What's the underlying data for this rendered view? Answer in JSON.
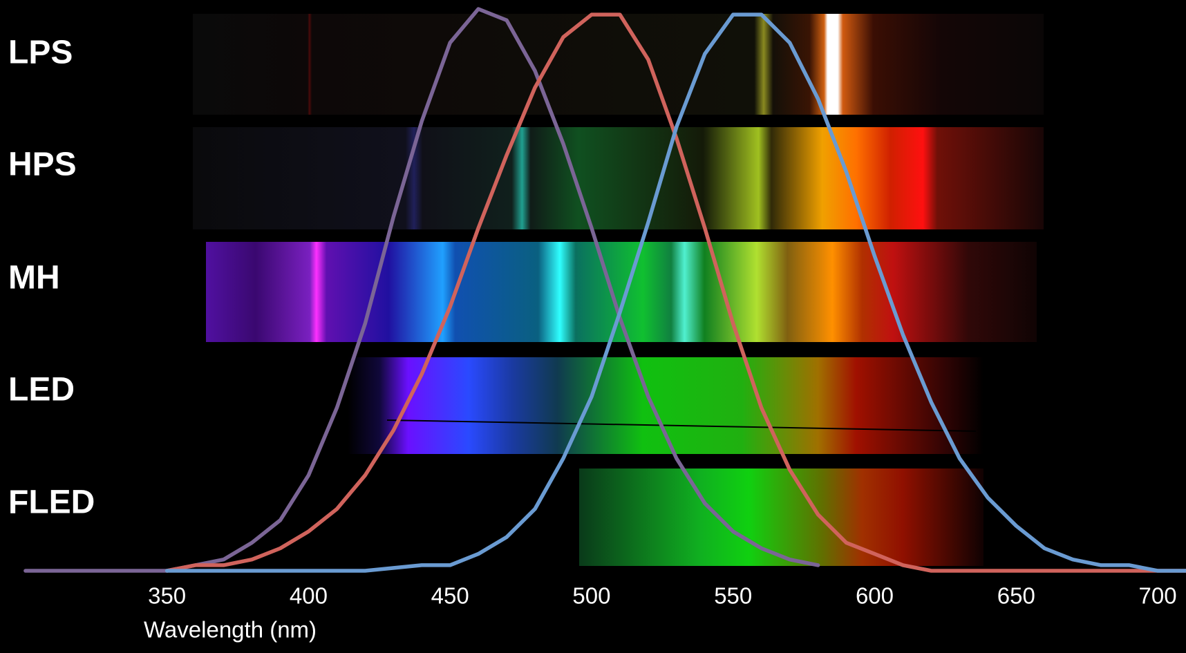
{
  "chart_data": {
    "type": "line",
    "row_labels": [
      "LPS",
      "HPS",
      "MH",
      "LED",
      "FLED"
    ],
    "x_label": "Wavelength (nm)",
    "xlim": [
      291,
      710
    ],
    "xticks": [
      350,
      400,
      450,
      500,
      550,
      600,
      650,
      700
    ],
    "ylim": [
      0,
      1
    ],
    "series": [
      {
        "color": "#7b6596",
        "x": [
          300,
          350,
          360,
          370,
          380,
          390,
          400,
          410,
          420,
          430,
          440,
          450,
          460,
          470,
          480,
          490,
          500,
          510,
          520,
          530,
          540,
          550,
          560,
          570,
          580
        ],
        "values": [
          0.0,
          0.0,
          0.01,
          0.02,
          0.05,
          0.09,
          0.17,
          0.29,
          0.44,
          0.63,
          0.8,
          0.94,
          1.0,
          0.98,
          0.89,
          0.76,
          0.61,
          0.45,
          0.31,
          0.2,
          0.12,
          0.07,
          0.04,
          0.02,
          0.01
        ]
      },
      {
        "color": "#d0635c",
        "x": [
          350,
          360,
          370,
          380,
          390,
          400,
          410,
          420,
          430,
          440,
          450,
          460,
          470,
          480,
          490,
          500,
          510,
          520,
          530,
          540,
          550,
          560,
          570,
          580,
          590,
          600,
          610,
          620,
          650,
          680,
          710
        ],
        "values": [
          0.0,
          0.01,
          0.01,
          0.02,
          0.04,
          0.07,
          0.11,
          0.17,
          0.25,
          0.35,
          0.47,
          0.61,
          0.74,
          0.86,
          0.95,
          0.99,
          0.99,
          0.91,
          0.77,
          0.61,
          0.44,
          0.29,
          0.18,
          0.1,
          0.05,
          0.03,
          0.01,
          0.0,
          0.0,
          0.0,
          0.0
        ]
      },
      {
        "color": "#6a9bd2",
        "x": [
          350,
          400,
          420,
          440,
          450,
          460,
          470,
          480,
          490,
          500,
          510,
          520,
          530,
          540,
          550,
          560,
          570,
          580,
          590,
          600,
          610,
          620,
          630,
          640,
          650,
          660,
          670,
          680,
          690,
          700,
          710
        ],
        "values": [
          0.0,
          0.0,
          0.0,
          0.01,
          0.01,
          0.03,
          0.06,
          0.11,
          0.2,
          0.31,
          0.46,
          0.62,
          0.79,
          0.92,
          0.99,
          0.99,
          0.94,
          0.84,
          0.71,
          0.56,
          0.42,
          0.3,
          0.2,
          0.13,
          0.08,
          0.04,
          0.02,
          0.01,
          0.01,
          0.0,
          0.0
        ]
      }
    ]
  }
}
